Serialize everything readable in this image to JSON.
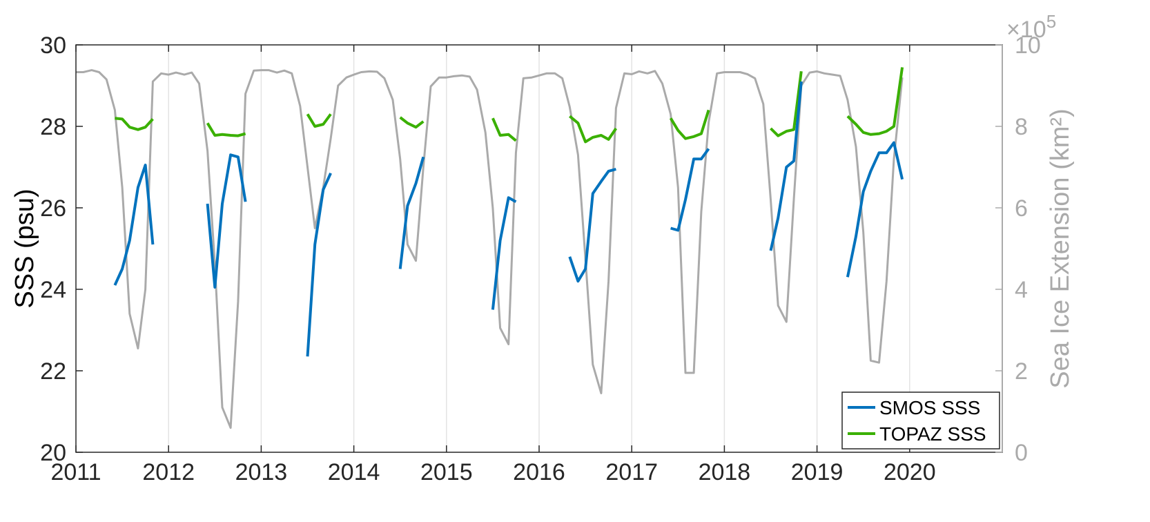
{
  "chart_data": {
    "type": "line",
    "xlabel": "",
    "xlim": [
      2011,
      2021
    ],
    "xticks": [
      "2011",
      "2012",
      "2013",
      "2014",
      "2015",
      "2016",
      "2017",
      "2018",
      "2019",
      "2020"
    ],
    "y_left": {
      "label": "SSS (psu)",
      "ylim": [
        20,
        30
      ],
      "ticks": [
        "20",
        "22",
        "24",
        "26",
        "28",
        "30"
      ]
    },
    "y_right": {
      "label": "Sea Ice Extension (km²)",
      "ylim": [
        0,
        1000000
      ],
      "ticks": [
        "0",
        "2",
        "4",
        "6",
        "8",
        "10"
      ],
      "multiplier": "×10",
      "exponent": "5"
    },
    "grid": "vertical",
    "legend": "bottom-right",
    "colors": {
      "smos": "#0072bd",
      "topaz": "#3ab000",
      "ice": "#aaaaaa",
      "right_axis": "#aaaaaa"
    },
    "series": [
      {
        "name": "SMOS SSS",
        "axis": "left",
        "segments": [
          [
            [
              2011.42,
              24.1
            ],
            [
              2011.5,
              24.5
            ],
            [
              2011.58,
              25.2
            ],
            [
              2011.67,
              26.5
            ],
            [
              2011.75,
              27.05
            ],
            [
              2011.83,
              25.1
            ]
          ],
          [
            [
              2012.42,
              26.1
            ],
            [
              2012.5,
              24.05
            ],
            [
              2012.58,
              26.1
            ],
            [
              2012.67,
              27.3
            ],
            [
              2012.75,
              27.25
            ],
            [
              2012.83,
              26.15
            ]
          ],
          [
            [
              2013.5,
              22.35
            ],
            [
              2013.58,
              25.1
            ],
            [
              2013.67,
              26.45
            ],
            [
              2013.75,
              26.85
            ]
          ],
          [
            [
              2014.5,
              24.5
            ],
            [
              2014.58,
              26.05
            ],
            [
              2014.67,
              26.6
            ],
            [
              2014.75,
              27.25
            ]
          ],
          [
            [
              2015.5,
              23.5
            ],
            [
              2015.58,
              25.2
            ],
            [
              2015.67,
              26.25
            ],
            [
              2015.75,
              26.15
            ]
          ],
          [
            [
              2016.33,
              24.8
            ],
            [
              2016.42,
              24.2
            ],
            [
              2016.5,
              24.5
            ],
            [
              2016.58,
              26.35
            ],
            [
              2016.67,
              26.65
            ],
            [
              2016.75,
              26.9
            ],
            [
              2016.83,
              26.95
            ]
          ],
          [
            [
              2017.42,
              25.5
            ],
            [
              2017.5,
              25.45
            ],
            [
              2017.58,
              26.2
            ],
            [
              2017.67,
              27.2
            ],
            [
              2017.75,
              27.2
            ],
            [
              2017.83,
              27.45
            ]
          ],
          [
            [
              2018.5,
              24.95
            ],
            [
              2018.58,
              25.75
            ],
            [
              2018.67,
              27.0
            ],
            [
              2018.75,
              27.15
            ],
            [
              2018.83,
              29.1
            ]
          ],
          [
            [
              2019.33,
              24.3
            ],
            [
              2019.42,
              25.3
            ],
            [
              2019.5,
              26.4
            ],
            [
              2019.58,
              26.9
            ],
            [
              2019.67,
              27.35
            ],
            [
              2019.75,
              27.35
            ],
            [
              2019.83,
              27.6
            ],
            [
              2019.92,
              26.7
            ]
          ]
        ]
      },
      {
        "name": "TOPAZ SSS",
        "axis": "left",
        "segments": [
          [
            [
              2011.42,
              28.2
            ],
            [
              2011.5,
              28.18
            ],
            [
              2011.58,
              27.98
            ],
            [
              2011.67,
              27.92
            ],
            [
              2011.75,
              27.98
            ],
            [
              2011.83,
              28.18
            ]
          ],
          [
            [
              2012.42,
              28.08
            ],
            [
              2012.5,
              27.78
            ],
            [
              2012.58,
              27.8
            ],
            [
              2012.67,
              27.78
            ],
            [
              2012.75,
              27.77
            ],
            [
              2012.83,
              27.82
            ]
          ],
          [
            [
              2013.5,
              28.3
            ],
            [
              2013.58,
              28.0
            ],
            [
              2013.67,
              28.05
            ],
            [
              2013.75,
              28.3
            ]
          ],
          [
            [
              2014.5,
              28.22
            ],
            [
              2014.58,
              28.08
            ],
            [
              2014.67,
              27.98
            ],
            [
              2014.75,
              28.12
            ]
          ],
          [
            [
              2015.5,
              28.2
            ],
            [
              2015.58,
              27.78
            ],
            [
              2015.67,
              27.8
            ],
            [
              2015.75,
              27.65
            ]
          ],
          [
            [
              2016.33,
              28.25
            ],
            [
              2016.42,
              28.08
            ],
            [
              2016.5,
              27.62
            ],
            [
              2016.58,
              27.73
            ],
            [
              2016.67,
              27.78
            ],
            [
              2016.75,
              27.68
            ],
            [
              2016.83,
              27.95
            ]
          ],
          [
            [
              2017.42,
              28.2
            ],
            [
              2017.5,
              27.9
            ],
            [
              2017.58,
              27.7
            ],
            [
              2017.67,
              27.75
            ],
            [
              2017.75,
              27.82
            ],
            [
              2017.83,
              28.4
            ]
          ],
          [
            [
              2018.5,
              27.95
            ],
            [
              2018.58,
              27.77
            ],
            [
              2018.67,
              27.88
            ],
            [
              2018.75,
              27.92
            ],
            [
              2018.83,
              29.35
            ]
          ],
          [
            [
              2019.33,
              28.25
            ],
            [
              2019.42,
              28.05
            ],
            [
              2019.5,
              27.85
            ],
            [
              2019.58,
              27.8
            ],
            [
              2019.67,
              27.82
            ],
            [
              2019.75,
              27.88
            ],
            [
              2019.83,
              28.0
            ],
            [
              2019.92,
              29.45
            ]
          ]
        ]
      },
      {
        "name": "Sea Ice Extension",
        "axis": "right",
        "points": [
          [
            2011.0,
            933000
          ],
          [
            2011.08,
            933000
          ],
          [
            2011.17,
            938000
          ],
          [
            2011.25,
            933000
          ],
          [
            2011.33,
            915000
          ],
          [
            2011.42,
            840000
          ],
          [
            2011.5,
            650000
          ],
          [
            2011.58,
            340000
          ],
          [
            2011.67,
            255000
          ],
          [
            2011.75,
            400000
          ],
          [
            2011.83,
            910000
          ],
          [
            2011.92,
            930000
          ],
          [
            2012.0,
            927000
          ],
          [
            2012.08,
            932000
          ],
          [
            2012.17,
            927000
          ],
          [
            2012.25,
            932000
          ],
          [
            2012.33,
            905000
          ],
          [
            2012.42,
            740000
          ],
          [
            2012.5,
            460000
          ],
          [
            2012.58,
            110000
          ],
          [
            2012.67,
            60000
          ],
          [
            2012.75,
            370000
          ],
          [
            2012.83,
            880000
          ],
          [
            2012.92,
            937000
          ],
          [
            2013.0,
            938000
          ],
          [
            2013.08,
            938000
          ],
          [
            2013.17,
            932000
          ],
          [
            2013.25,
            937000
          ],
          [
            2013.33,
            930000
          ],
          [
            2013.42,
            850000
          ],
          [
            2013.5,
            700000
          ],
          [
            2013.58,
            550000
          ],
          [
            2013.67,
            650000
          ],
          [
            2013.75,
            770000
          ],
          [
            2013.83,
            900000
          ],
          [
            2013.92,
            920000
          ],
          [
            2014.0,
            927000
          ],
          [
            2014.08,
            933000
          ],
          [
            2014.17,
            935000
          ],
          [
            2014.25,
            934000
          ],
          [
            2014.33,
            918000
          ],
          [
            2014.42,
            865000
          ],
          [
            2014.5,
            720000
          ],
          [
            2014.58,
            510000
          ],
          [
            2014.67,
            470000
          ],
          [
            2014.75,
            700000
          ],
          [
            2014.83,
            898000
          ],
          [
            2014.92,
            920000
          ],
          [
            2015.0,
            920000
          ],
          [
            2015.08,
            923000
          ],
          [
            2015.17,
            925000
          ],
          [
            2015.25,
            922000
          ],
          [
            2015.33,
            890000
          ],
          [
            2015.42,
            785000
          ],
          [
            2015.5,
            600000
          ],
          [
            2015.58,
            305000
          ],
          [
            2015.67,
            265000
          ],
          [
            2015.75,
            735000
          ],
          [
            2015.83,
            918000
          ],
          [
            2015.92,
            920000
          ],
          [
            2016.0,
            925000
          ],
          [
            2016.08,
            930000
          ],
          [
            2016.17,
            930000
          ],
          [
            2016.25,
            918000
          ],
          [
            2016.33,
            848000
          ],
          [
            2016.42,
            730000
          ],
          [
            2016.5,
            475000
          ],
          [
            2016.58,
            215000
          ],
          [
            2016.67,
            145000
          ],
          [
            2016.75,
            420000
          ],
          [
            2016.83,
            845000
          ],
          [
            2016.92,
            930000
          ],
          [
            2017.0,
            928000
          ],
          [
            2017.08,
            935000
          ],
          [
            2017.17,
            930000
          ],
          [
            2017.25,
            936000
          ],
          [
            2017.33,
            905000
          ],
          [
            2017.42,
            830000
          ],
          [
            2017.5,
            650000
          ],
          [
            2017.58,
            195000
          ],
          [
            2017.67,
            195000
          ],
          [
            2017.75,
            590000
          ],
          [
            2017.83,
            810000
          ],
          [
            2017.92,
            930000
          ],
          [
            2018.0,
            933000
          ],
          [
            2018.08,
            933000
          ],
          [
            2018.17,
            933000
          ],
          [
            2018.25,
            928000
          ],
          [
            2018.33,
            918000
          ],
          [
            2018.42,
            855000
          ],
          [
            2018.5,
            620000
          ],
          [
            2018.58,
            360000
          ],
          [
            2018.67,
            320000
          ],
          [
            2018.75,
            620000
          ],
          [
            2018.83,
            900000
          ],
          [
            2018.92,
            932000
          ],
          [
            2019.0,
            935000
          ],
          [
            2019.08,
            930000
          ],
          [
            2019.17,
            927000
          ],
          [
            2019.25,
            924000
          ],
          [
            2019.33,
            865000
          ],
          [
            2019.42,
            750000
          ],
          [
            2019.5,
            540000
          ],
          [
            2019.58,
            225000
          ],
          [
            2019.67,
            220000
          ],
          [
            2019.75,
            420000
          ],
          [
            2019.83,
            720000
          ],
          [
            2019.92,
            920000
          ]
        ]
      }
    ]
  }
}
